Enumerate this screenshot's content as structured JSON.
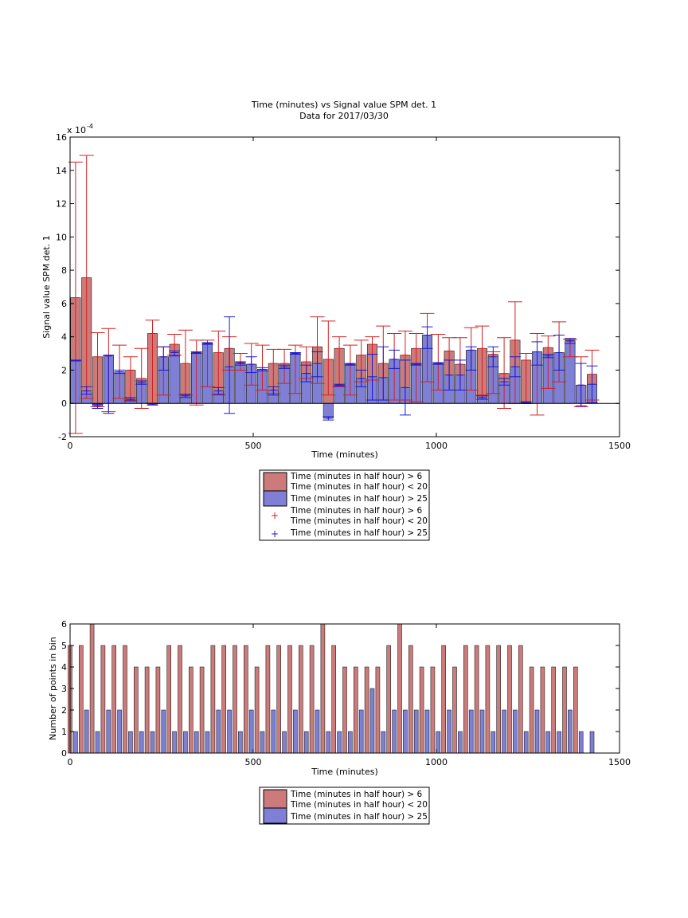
{
  "chart_data": [
    {
      "type": "bar",
      "title": "Time (minutes) vs Signal value SPM det. 1",
      "subtitle": "Data for 2017/03/30",
      "xlabel": "Time (minutes)",
      "ylabel": "Signal value SPM det. 1",
      "y_exponent": "x 10",
      "y_exponent_power": "-4",
      "xlim": [
        0,
        1500
      ],
      "ylim": [
        -2,
        16
      ],
      "xticks": [
        "0",
        "500",
        "1000",
        "1500"
      ],
      "yticks": [
        "-2",
        "0",
        "2",
        "4",
        "6",
        "8",
        "10",
        "12",
        "14",
        "16"
      ],
      "grid": false,
      "legend_position": "below",
      "colors": {
        "red": "#cc7a7a",
        "blue": "#7f7fd6",
        "red_error": "#d42020",
        "blue_error": "#1a1acc"
      },
      "series": [
        {
          "name": "Time (minutes in half hour) > 6\nTime (minutes in half hour) < 20",
          "x": [
            15,
            45,
            75,
            105,
            135,
            165,
            195,
            225,
            255,
            285,
            315,
            345,
            375,
            405,
            435,
            465,
            495,
            525,
            555,
            585,
            615,
            645,
            675,
            705,
            735,
            765,
            795,
            825,
            855,
            885,
            915,
            945,
            975,
            1005,
            1035,
            1065,
            1095,
            1125,
            1155,
            1185,
            1215,
            1245,
            1275,
            1305,
            1335,
            1365,
            1395,
            1425
          ],
          "values": [
            6.35,
            7.55,
            2.8,
            2.85,
            1.9,
            2.0,
            1.5,
            4.2,
            2.8,
            3.55,
            2.4,
            3.05,
            3.6,
            3.05,
            3.3,
            2.45,
            2.35,
            2.05,
            2.4,
            2.4,
            3.0,
            2.5,
            3.4,
            2.65,
            3.3,
            2.35,
            2.9,
            3.55,
            2.4,
            2.65,
            2.9,
            3.3,
            4.1,
            2.4,
            3.15,
            2.35,
            3.2,
            3.3,
            2.95,
            1.8,
            3.8,
            2.6,
            3.1,
            3.35,
            3.05,
            3.8,
            1.1,
            1.75
          ],
          "err_low": [
            -1.8,
            0.3,
            -0.2,
            -0.5,
            0.3,
            0.2,
            -0.3,
            0.0,
            0.5,
            2.9,
            0.5,
            -0.1,
            1.0,
            0.5,
            2.0,
            2.0,
            1.1,
            0.8,
            0.6,
            1.2,
            0.6,
            1.5,
            1.2,
            0.5,
            1.0,
            0.5,
            1.3,
            1.4,
            0.2,
            0.2,
            0.2,
            0.1,
            1.3,
            0.8,
            0.8,
            0.8,
            0.8,
            0.5,
            0.6,
            -0.3,
            0.0,
            0.0,
            -0.7,
            0.9,
            1.3,
            2.8,
            -0.2,
            0.2
          ],
          "err_high": [
            14.5,
            14.9,
            4.25,
            4.5,
            3.5,
            2.8,
            3.3,
            5.0,
            3.4,
            4.15,
            4.4,
            3.8,
            3.8,
            4.35,
            4.0,
            3.0,
            3.6,
            3.5,
            3.25,
            3.25,
            3.5,
            3.4,
            5.2,
            4.95,
            4.0,
            3.5,
            3.8,
            4.0,
            4.65,
            4.2,
            4.35,
            4.2,
            5.4,
            4.15,
            3.95,
            3.95,
            4.55,
            4.65,
            3.1,
            3.95,
            6.1,
            3.0,
            4.2,
            4.05,
            4.9,
            3.85,
            2.8,
            3.2
          ]
        },
        {
          "name": "Time (minutes in half hour) > 25",
          "x": [
            15,
            45,
            75,
            105,
            135,
            165,
            195,
            225,
            255,
            285,
            315,
            345,
            375,
            405,
            435,
            465,
            495,
            525,
            555,
            585,
            615,
            645,
            675,
            705,
            735,
            765,
            795,
            825,
            855,
            885,
            915,
            945,
            975,
            1005,
            1035,
            1065,
            1095,
            1125,
            1155,
            1185,
            1215,
            1245,
            1275,
            1305,
            1335,
            1365,
            1395,
            1425
          ],
          "values": [
            2.55,
            0.75,
            -0.15,
            2.85,
            1.9,
            0.25,
            1.25,
            -0.05,
            2.8,
            3.05,
            0.45,
            3.05,
            3.6,
            0.75,
            2.2,
            2.4,
            2.35,
            2.05,
            0.8,
            2.2,
            3.0,
            1.8,
            2.4,
            -0.9,
            1.1,
            2.35,
            1.5,
            1.6,
            1.55,
            2.65,
            0.95,
            2.35,
            4.1,
            2.4,
            1.7,
            1.7,
            3.2,
            0.35,
            2.8,
            1.3,
            2.2,
            0.05,
            3.1,
            2.85,
            3.05,
            3.75,
            1.1,
            1.15
          ],
          "err_low": [
            2.55,
            0.55,
            -0.3,
            -0.6,
            1.8,
            0.15,
            1.15,
            -0.1,
            2.0,
            2.85,
            0.35,
            3.0,
            3.55,
            0.55,
            -0.6,
            2.3,
            1.85,
            1.95,
            0.5,
            2.1,
            2.95,
            1.3,
            1.6,
            -1.0,
            1.05,
            2.3,
            1.0,
            0.2,
            0.2,
            2.1,
            -0.7,
            2.3,
            3.3,
            2.35,
            0.8,
            0.8,
            2.0,
            0.25,
            2.2,
            1.1,
            1.6,
            0.0,
            2.3,
            2.75,
            2.0,
            3.6,
            -0.15,
            0.05
          ],
          "err_high": [
            2.6,
            1.0,
            -0.05,
            2.9,
            2.0,
            0.35,
            1.35,
            0.0,
            3.4,
            3.15,
            0.55,
            3.1,
            3.65,
            0.95,
            5.2,
            2.5,
            2.8,
            2.15,
            1.0,
            2.3,
            3.05,
            2.3,
            3.1,
            -0.8,
            1.15,
            2.4,
            2.0,
            2.95,
            3.4,
            3.2,
            2.6,
            2.4,
            4.6,
            2.45,
            2.6,
            2.6,
            3.4,
            0.45,
            3.4,
            1.5,
            2.8,
            0.1,
            3.7,
            2.95,
            4.1,
            3.9,
            2.4,
            2.25
          ]
        }
      ],
      "legend": [
        "Time (minutes in half hour) > 6",
        "Time (minutes in half hour) < 20",
        "Time (minutes in half hour) > 25",
        "Time (minutes in half hour) > 6",
        "Time (minutes in half hour) < 20",
        "Time (minutes in half hour) > 25"
      ]
    },
    {
      "type": "bar",
      "title": "",
      "xlabel": "Time (minutes)",
      "ylabel": "Number of points in bin",
      "xlim": [
        0,
        1500
      ],
      "ylim": [
        0,
        6
      ],
      "xticks": [
        "0",
        "500",
        "1000",
        "1500"
      ],
      "yticks": [
        "0",
        "1",
        "2",
        "3",
        "4",
        "5",
        "6"
      ],
      "grid": false,
      "legend_position": "below",
      "colors": {
        "red": "#cc7a7a",
        "blue": "#7f7fd6"
      },
      "series": [
        {
          "name": "Time (minutes in half hour) > 6\nTime (minutes in half hour) < 20",
          "x": [
            0,
            30,
            60,
            90,
            120,
            150,
            180,
            210,
            240,
            270,
            300,
            330,
            360,
            390,
            420,
            450,
            480,
            510,
            540,
            570,
            600,
            630,
            660,
            690,
            720,
            750,
            780,
            810,
            840,
            870,
            900,
            930,
            960,
            990,
            1020,
            1050,
            1080,
            1110,
            1140,
            1170,
            1200,
            1230,
            1260,
            1290,
            1320,
            1350,
            1380
          ],
          "values": [
            5,
            5,
            6,
            5,
            5,
            5,
            4,
            4,
            4,
            5,
            5,
            4,
            4,
            5,
            5,
            5,
            5,
            4,
            5,
            5,
            5,
            5,
            5,
            6,
            5,
            4,
            4,
            4,
            4,
            5,
            6,
            5,
            4,
            4,
            5,
            4,
            5,
            5,
            5,
            5,
            5,
            5,
            4,
            4,
            4,
            4,
            4
          ]
        },
        {
          "name": "Time (minutes in half hour) > 25",
          "x": [
            15,
            45,
            75,
            105,
            135,
            165,
            195,
            225,
            255,
            285,
            315,
            345,
            375,
            405,
            435,
            465,
            495,
            525,
            555,
            585,
            615,
            645,
            675,
            705,
            735,
            765,
            795,
            825,
            855,
            885,
            915,
            945,
            975,
            1005,
            1035,
            1065,
            1095,
            1125,
            1155,
            1185,
            1215,
            1245,
            1275,
            1305,
            1335,
            1365,
            1395,
            1425
          ],
          "values": [
            1,
            2,
            1,
            2,
            2,
            1,
            1,
            1,
            2,
            1,
            1,
            1,
            1,
            2,
            2,
            1,
            2,
            1,
            2,
            1,
            2,
            1,
            2,
            1,
            1,
            1,
            2,
            3,
            1,
            2,
            2,
            2,
            2,
            1,
            2,
            1,
            2,
            2,
            1,
            2,
            2,
            1,
            2,
            1,
            1,
            2,
            1,
            1
          ]
        }
      ],
      "legend": [
        "Time (minutes in half hour) > 6",
        "Time (minutes in half hour) < 20",
        "Time (minutes in half hour) > 25"
      ]
    }
  ]
}
